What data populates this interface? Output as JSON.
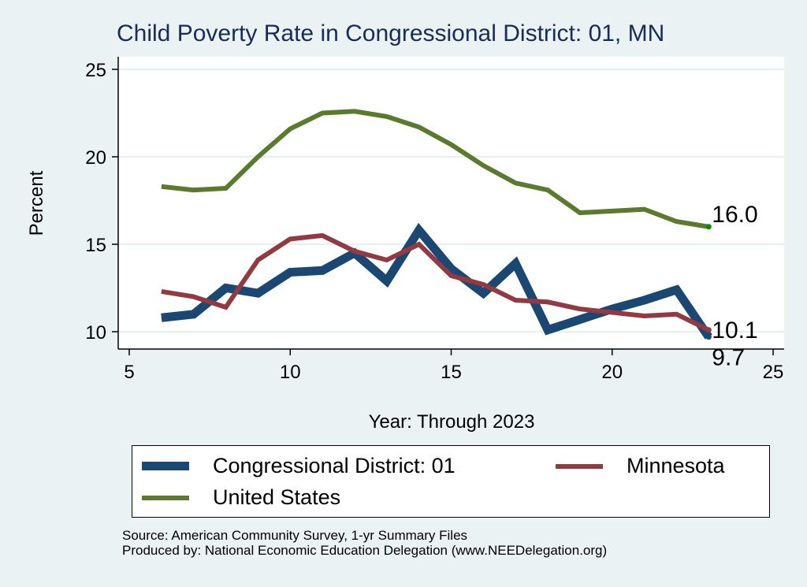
{
  "chart_data": {
    "type": "line",
    "title": "Child Poverty Rate in Congressional District:  01, MN",
    "xlabel": "Year: Through 2023",
    "ylabel": "Percent",
    "xlim": [
      5,
      25
    ],
    "ylim": [
      9,
      26
    ],
    "xticks": [
      5,
      10,
      15,
      20,
      25
    ],
    "yticks": [
      10,
      15,
      20,
      25
    ],
    "grid": true,
    "legend_position": "bottom",
    "x": [
      6,
      7,
      8,
      9,
      10,
      11,
      12,
      13,
      14,
      15,
      16,
      17,
      18,
      19,
      20,
      21,
      22,
      23
    ],
    "series": [
      {
        "name": "Congressional District:  01",
        "color": "#1a4872",
        "values": [
          10.8,
          11.0,
          12.5,
          12.2,
          13.4,
          13.5,
          14.5,
          12.9,
          15.8,
          13.6,
          12.2,
          13.9,
          10.1,
          10.7,
          11.3,
          11.8,
          12.4,
          9.7
        ],
        "end_label": "9.7"
      },
      {
        "name": "Minnesota",
        "color": "#923a41",
        "values": [
          12.3,
          12.0,
          11.4,
          14.1,
          15.3,
          15.5,
          14.6,
          14.1,
          15.0,
          13.2,
          12.7,
          11.8,
          11.7,
          11.3,
          11.1,
          10.9,
          11.0,
          10.1
        ],
        "end_label": "10.1"
      },
      {
        "name": "United States",
        "color": "#5a7a2e",
        "values": [
          18.3,
          18.1,
          18.2,
          20.0,
          21.6,
          22.5,
          22.6,
          22.3,
          21.7,
          20.7,
          19.5,
          18.5,
          18.1,
          16.8,
          16.9,
          17.0,
          16.3,
          16.0
        ],
        "end_label": "16.0"
      }
    ]
  },
  "footer": {
    "source": "Source: American Community Survey, 1-yr Summary Files",
    "produced_by": "Produced by: National Economic Education Delegation (www.NEEDelegation.org)"
  }
}
